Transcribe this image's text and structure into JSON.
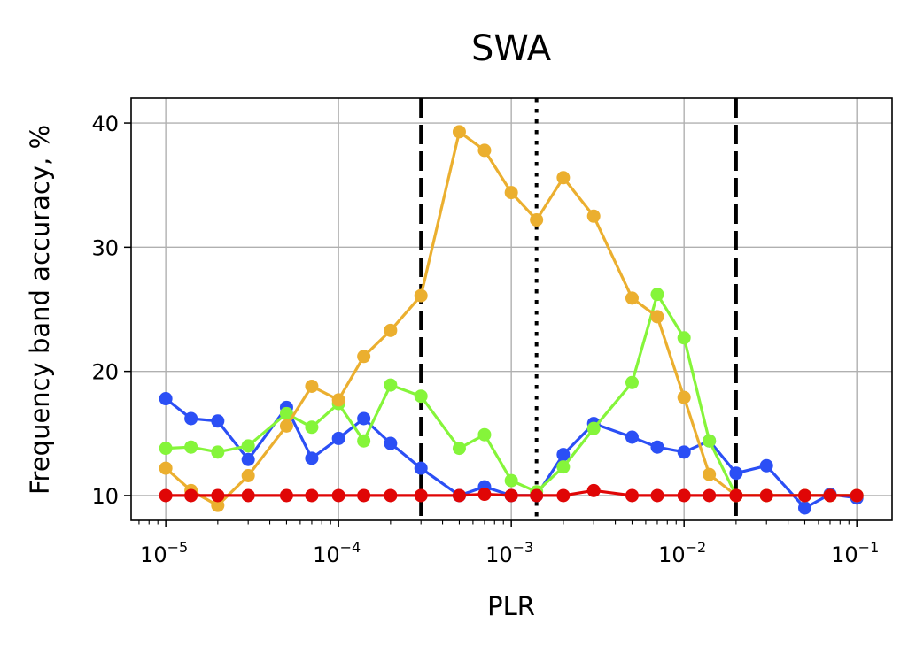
{
  "chart_data": {
    "type": "line",
    "title": "SWA",
    "xlabel": "PLR",
    "ylabel": "Frequency band accuracy, %",
    "xscale": "log",
    "xlim": [
      6.3e-06,
      0.16
    ],
    "ylim": [
      8,
      42
    ],
    "grid": true,
    "x_ticks": [
      {
        "value": 1e-05,
        "base": "10",
        "exp": "−5"
      },
      {
        "value": 0.0001,
        "base": "10",
        "exp": "−4"
      },
      {
        "value": 0.001,
        "base": "10",
        "exp": "−3"
      },
      {
        "value": 0.01,
        "base": "10",
        "exp": "−2"
      },
      {
        "value": 0.1,
        "base": "10",
        "exp": "−1"
      }
    ],
    "y_ticks": [
      {
        "value": 10,
        "label": "10"
      },
      {
        "value": 20,
        "label": "20"
      },
      {
        "value": 30,
        "label": "30"
      },
      {
        "value": 40,
        "label": "40"
      }
    ],
    "vlines": [
      {
        "x": 0.0003,
        "style": "dashed"
      },
      {
        "x": 0.0014,
        "style": "dotted"
      },
      {
        "x": 0.02,
        "style": "dashed"
      }
    ],
    "x": [
      1e-05,
      1.4e-05,
      2e-05,
      3e-05,
      5e-05,
      7e-05,
      0.0001,
      0.00014,
      0.0002,
      0.0003,
      0.0005,
      0.0007,
      0.001,
      0.0014,
      0.002,
      0.003,
      0.005,
      0.007,
      0.01,
      0.014,
      0.02,
      0.03,
      0.05,
      0.07,
      0.1
    ],
    "series": [
      {
        "color": "#2b4ff5",
        "values": [
          17.8,
          16.2,
          16.0,
          12.9,
          17.1,
          13.0,
          14.6,
          16.2,
          14.2,
          12.2,
          10.0,
          10.7,
          10.0,
          10.0,
          13.3,
          15.8,
          14.7,
          13.9,
          13.5,
          14.4,
          11.8,
          12.4,
          9.0,
          10.1,
          9.8
        ]
      },
      {
        "color": "#85f53a",
        "values": [
          13.8,
          13.9,
          13.5,
          14.0,
          16.6,
          15.5,
          17.4,
          14.4,
          18.9,
          18.0,
          13.8,
          14.9,
          11.2,
          10.3,
          12.3,
          15.4,
          19.1,
          26.2,
          22.7,
          14.4,
          10.0,
          10.0,
          10.0,
          10.0,
          10.0
        ]
      },
      {
        "color": "#ebaf2f",
        "values": [
          12.2,
          10.4,
          9.2,
          11.6,
          15.6,
          18.8,
          17.7,
          21.2,
          23.3,
          26.1,
          39.3,
          37.8,
          34.4,
          32.2,
          35.6,
          32.5,
          25.9,
          24.4,
          17.9,
          11.7,
          10.0,
          10.0,
          10.0,
          10.0,
          10.0
        ]
      },
      {
        "color": "#e00606",
        "values": [
          10.0,
          10.0,
          10.0,
          10.0,
          10.0,
          10.0,
          10.0,
          10.0,
          10.0,
          10.0,
          10.0,
          10.1,
          10.0,
          10.0,
          10.0,
          10.4,
          10.0,
          10.0,
          10.0,
          10.0,
          10.0,
          10.0,
          10.0,
          10.0,
          10.0
        ]
      }
    ]
  }
}
